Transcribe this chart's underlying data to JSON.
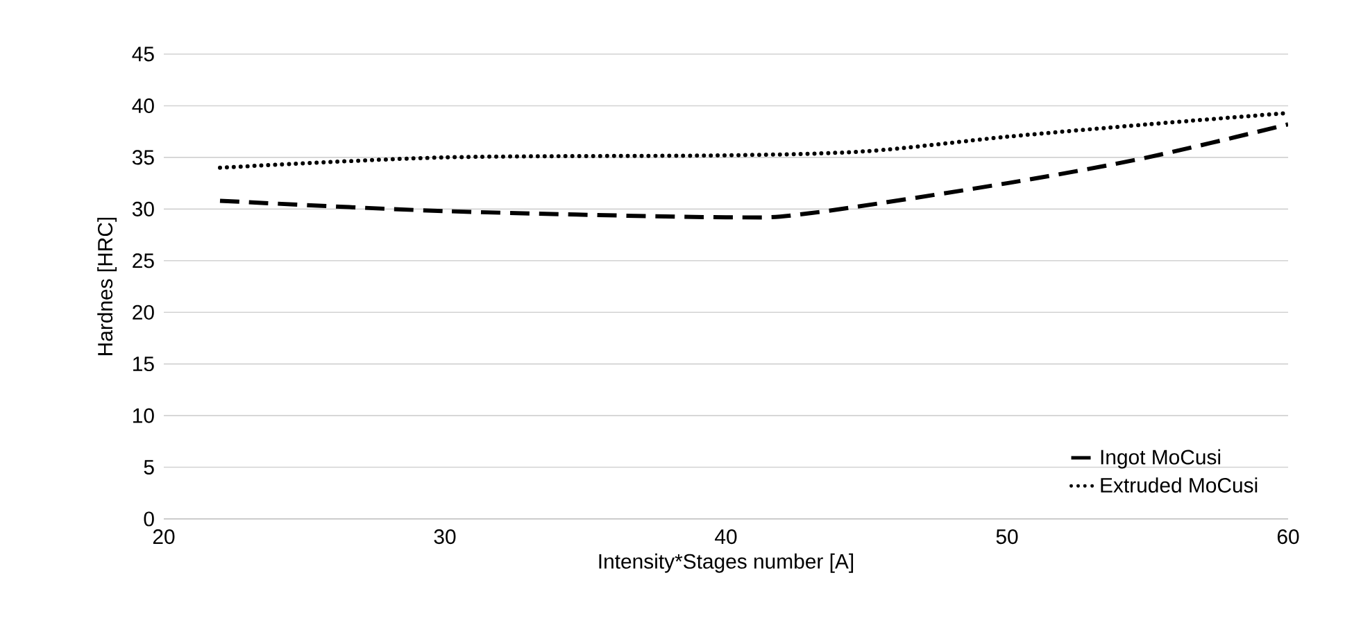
{
  "chart_data": {
    "type": "line",
    "xlabel": "Intensity*Stages number [A]",
    "ylabel": "Hardnes [HRC]",
    "xlim": [
      20,
      60
    ],
    "xticks": [
      20,
      30,
      40,
      50,
      60
    ],
    "ylim": [
      0,
      45
    ],
    "yticks": [
      0,
      5,
      10,
      15,
      20,
      25,
      30,
      35,
      40,
      45
    ],
    "grid": "y",
    "legend": "bottom right",
    "marker": "none",
    "series": [
      {
        "name": "Ingot MoCusi",
        "color": "#000000",
        "line_style": "dashed",
        "x": [
          22,
          30,
          40,
          43,
          50,
          55,
          60
        ],
        "values": [
          30.8,
          29.8,
          29.2,
          29.6,
          32.5,
          35,
          38.2
        ]
      },
      {
        "name": "Extruded MoCusi",
        "color": "#000000",
        "line_style": "dotted",
        "x": [
          22,
          30,
          40,
          45,
          50,
          55,
          60
        ],
        "values": [
          34,
          35,
          35.2,
          35.6,
          37,
          38.2,
          39.3
        ]
      }
    ]
  }
}
